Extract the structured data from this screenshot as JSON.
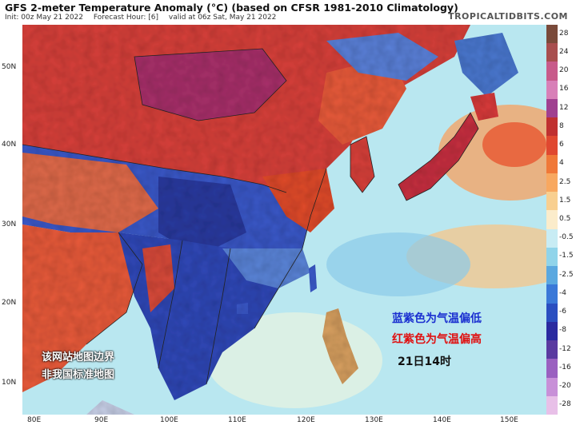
{
  "header": {
    "title": "GFS 2-meter Temperature Anomaly (°C) (based on CFSR 1981-2010 Climatology)",
    "init": "Init: 00z May 21 2022",
    "forecast_hour": "Forecast Hour: [6]",
    "valid": "valid at 06z Sat, May 21 2022",
    "brand": "TROPICALTIDBITS.COM"
  },
  "map": {
    "lat_labels": [
      "50N",
      "40N",
      "30N",
      "20N",
      "10N"
    ],
    "lon_labels": [
      "80E",
      "90E",
      "100E",
      "110E",
      "120E",
      "130E",
      "140E",
      "150E"
    ],
    "colors": {
      "ocean": "#b9e7f0",
      "warm": "#e8503a",
      "hot": "#c92a2a",
      "very_hot": "#a0306a",
      "cool": "#3a64d8",
      "cold": "#2a3aa0",
      "mild": "#f0e6b0",
      "border": "#222222"
    }
  },
  "colorbar": {
    "labels": [
      "28",
      "24",
      "20",
      "16",
      "12",
      "8",
      "6",
      "4",
      "2.5",
      "1.5",
      "0.5",
      "-0.5",
      "-1.5",
      "-2.5",
      "-4",
      "-6",
      "-8",
      "-12",
      "-16",
      "-20",
      "-28"
    ],
    "colors": [
      "#7a4a3a",
      "#a84e4e",
      "#c85a8a",
      "#d880b8",
      "#a04090",
      "#c03030",
      "#e04830",
      "#f07838",
      "#f8a860",
      "#f8cf90",
      "#fbeccb",
      "#c8ecf4",
      "#90d4ea",
      "#5aa8e0",
      "#3a78d8",
      "#2a4ec0",
      "#2a2aa0",
      "#5a3aa0",
      "#9a60c0",
      "#c890d8",
      "#e8c0e8"
    ]
  },
  "annotations": {
    "blue": "蓝紫色为气温偏低",
    "red": "红紫色为气温偏高",
    "time": "21日14时",
    "disclaimer_line1": "该网站地图边界",
    "disclaimer_line2": "非我国标准地图"
  }
}
